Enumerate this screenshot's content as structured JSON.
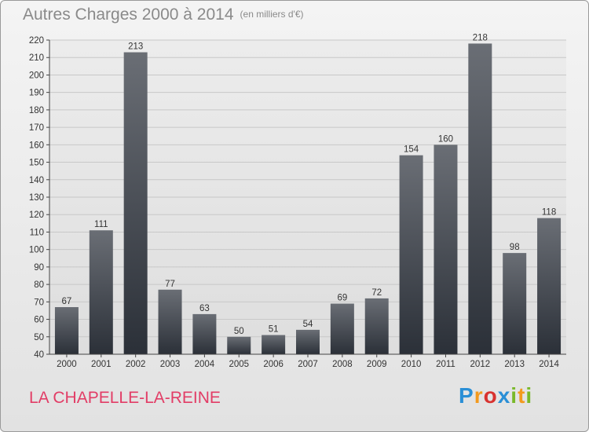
{
  "title": "Autres Charges 2000 à 2014",
  "subtitle": "(en milliers d'€)",
  "place_name": "LA CHAPELLE-LA-REINE",
  "logo": {
    "letters": [
      "P",
      "r",
      "o",
      "x",
      "i",
      "t",
      "i"
    ],
    "colors": [
      "#2a8fd6",
      "#f39a1e",
      "#d8322f",
      "#2a8fd6",
      "#79b829",
      "#f39a1e",
      "#79b829"
    ]
  },
  "colors": {
    "bar_top": "#6a6e75",
    "bar_bottom": "#2b3038",
    "grid": "#c8c8c8",
    "text": "#333333"
  },
  "chart_data": {
    "type": "bar",
    "categories": [
      "2000",
      "2001",
      "2002",
      "2003",
      "2004",
      "2005",
      "2006",
      "2007",
      "2008",
      "2009",
      "2010",
      "2011",
      "2012",
      "2013",
      "2014"
    ],
    "values": [
      67,
      111,
      213,
      77,
      63,
      50,
      51,
      54,
      69,
      72,
      154,
      160,
      218,
      98,
      118
    ],
    "ylim": [
      40,
      220
    ],
    "yticks": [
      40,
      50,
      60,
      70,
      80,
      90,
      100,
      110,
      120,
      130,
      140,
      150,
      160,
      170,
      180,
      190,
      200,
      210,
      220
    ],
    "grid": true,
    "data_labels": true
  }
}
